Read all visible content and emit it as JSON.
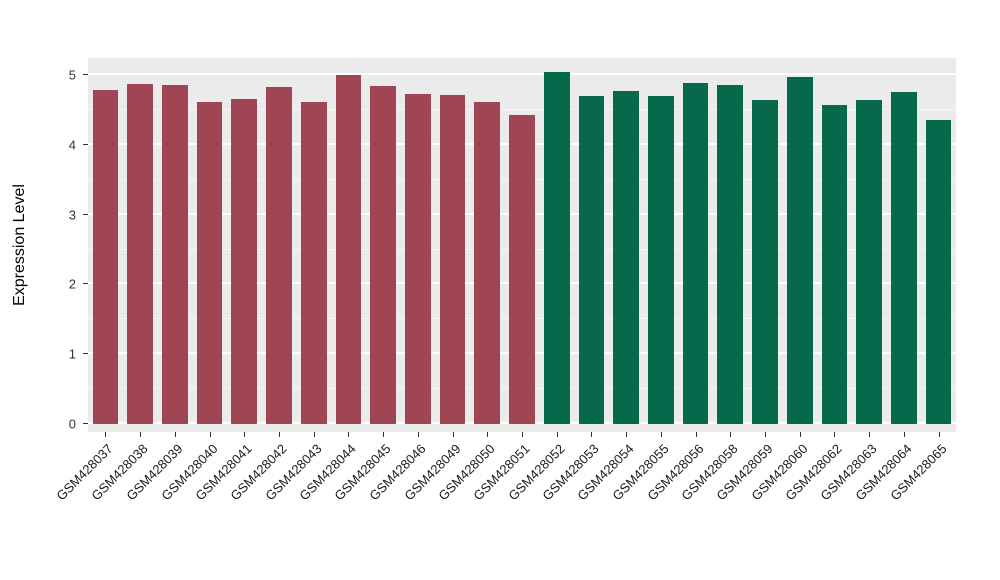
{
  "figure": {
    "background": "#FFFFFF",
    "panel_background": "#EBEBEB",
    "grid_color": "#FFFFFF",
    "axis_text_color": "#333333"
  },
  "chart_data": {
    "type": "bar",
    "title": "",
    "xlabel": "",
    "ylabel": "Expression Level",
    "ylim": [
      0,
      5.35
    ],
    "yticks": [
      0,
      1,
      2,
      3,
      4,
      5
    ],
    "grid": true,
    "legend": "none",
    "categories": [
      "GSM428037",
      "GSM428038",
      "GSM428039",
      "GSM428040",
      "GSM428041",
      "GSM428042",
      "GSM428043",
      "GSM428044",
      "GSM428045",
      "GSM428046",
      "GSM428049",
      "GSM428050",
      "GSM428051",
      "GSM428052",
      "GSM428053",
      "GSM428054",
      "GSM428055",
      "GSM428056",
      "GSM428058",
      "GSM428059",
      "GSM428060",
      "GSM428062",
      "GSM428063",
      "GSM428064",
      "GSM428065"
    ],
    "values": [
      4.78,
      4.87,
      4.85,
      4.62,
      4.65,
      4.83,
      4.62,
      5.0,
      4.84,
      4.73,
      4.72,
      4.62,
      4.43,
      5.05,
      4.7,
      4.77,
      4.7,
      4.88,
      4.85,
      4.64,
      4.97,
      4.57,
      4.64,
      4.75,
      4.35
    ],
    "groups": [
      "maroon",
      "maroon",
      "maroon",
      "maroon",
      "maroon",
      "maroon",
      "maroon",
      "maroon",
      "maroon",
      "maroon",
      "maroon",
      "maroon",
      "maroon",
      "green",
      "green",
      "green",
      "green",
      "green",
      "green",
      "green",
      "green",
      "green",
      "green",
      "green",
      "green"
    ],
    "group_colors": {
      "maroon": "#A04554",
      "green": "#07694C"
    }
  }
}
